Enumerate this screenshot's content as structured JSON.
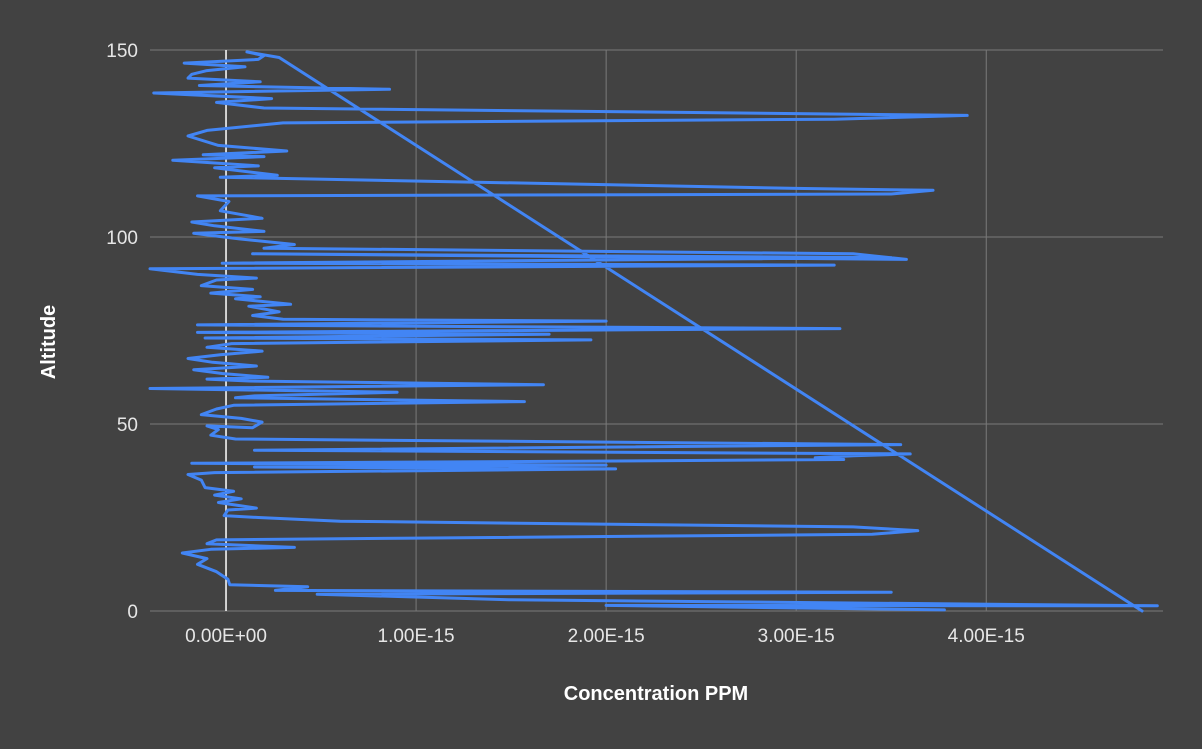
{
  "colors": {
    "background": "#424242",
    "grid": "#7a7a7a",
    "zero_line": "#ffffff",
    "series": "#4285f4",
    "text": "#e6e6e6"
  },
  "chart_data": {
    "type": "line",
    "title": "",
    "xlabel": "Concentration PPM",
    "ylabel": "Altitude",
    "xlim": [
      -4e-16,
      4.93e-15
    ],
    "ylim": [
      0,
      150
    ],
    "grid": true,
    "legend": "none",
    "x_ticks": [
      {
        "value": 0,
        "label": "0.00E+00"
      },
      {
        "value": 1e-15,
        "label": "1.00E-15"
      },
      {
        "value": 2e-15,
        "label": "2.00E-15"
      },
      {
        "value": 3e-15,
        "label": "3.00E-15"
      },
      {
        "value": 4e-15,
        "label": "4.00E-15"
      }
    ],
    "y_ticks": [
      {
        "value": 0,
        "label": "0"
      },
      {
        "value": 50,
        "label": "50"
      },
      {
        "value": 100,
        "label": "100"
      },
      {
        "value": 150,
        "label": "150"
      }
    ],
    "series": [
      {
        "points": [
          [
            3.78e-15,
            0.3
          ],
          [
            2e-15,
            1.5
          ],
          [
            4.9e-15,
            1.4
          ],
          [
            1.5e-15,
            3.0
          ],
          [
            4.8e-16,
            4.5
          ],
          [
            3.5e-15,
            5.0
          ],
          [
            2.6e-16,
            5.5
          ],
          [
            4.3e-16,
            6.5
          ],
          [
            2e-17,
            7.0
          ],
          [
            1e-17,
            8.5
          ],
          [
            -5e-17,
            10.5
          ],
          [
            -1.5e-16,
            12.5
          ],
          [
            -1e-16,
            14.0
          ],
          [
            -2.3e-16,
            15.5
          ],
          [
            -8e-17,
            16.5
          ],
          [
            3.6e-16,
            17.0
          ],
          [
            -1e-16,
            18.0
          ],
          [
            -5e-17,
            19.0
          ],
          [
            1e-15,
            19.5
          ],
          [
            3.4e-15,
            20.5
          ],
          [
            3.64e-15,
            21.5
          ],
          [
            3.3e-15,
            22.5
          ],
          [
            6e-16,
            24.0
          ],
          [
            1.7e-16,
            25.0
          ],
          [
            -1e-17,
            25.5
          ],
          [
            1e-17,
            27.0
          ],
          [
            1.6e-16,
            27.5
          ],
          [
            -4e-17,
            29.0
          ],
          [
            8e-17,
            30.0
          ],
          [
            -6e-17,
            31.0
          ],
          [
            4e-17,
            32.0
          ],
          [
            -1.1e-16,
            33.0
          ],
          [
            -1.3e-16,
            35.0
          ],
          [
            -2e-16,
            36.5
          ],
          [
            -6e-17,
            37.0
          ],
          [
            2.05e-15,
            38.0
          ],
          [
            1.5e-16,
            38.5
          ],
          [
            2e-15,
            39.0
          ],
          [
            -1.8e-16,
            39.5
          ],
          [
            1.7e-15,
            40.0
          ],
          [
            3.25e-15,
            40.5
          ],
          [
            3.1e-15,
            41.0
          ],
          [
            3.3e-15,
            41.5
          ],
          [
            3.6e-15,
            42.0
          ],
          [
            1.5e-16,
            43.0
          ],
          [
            3.55e-15,
            44.5
          ],
          [
            5e-17,
            46.0
          ],
          [
            -8e-17,
            47.0
          ],
          [
            -4e-17,
            48.5
          ],
          [
            -1e-16,
            49.5
          ],
          [
            1.4e-16,
            49.0
          ],
          [
            1.9e-16,
            50.5
          ],
          [
            8e-17,
            51.5
          ],
          [
            -1.3e-16,
            52.5
          ],
          [
            -5e-17,
            54.0
          ],
          [
            4e-17,
            55.0
          ],
          [
            1.57e-15,
            56.0
          ],
          [
            5e-17,
            57.0
          ],
          [
            1.5e-16,
            57.5
          ],
          [
            9e-16,
            58.5
          ],
          [
            -4e-16,
            59.5
          ],
          [
            1.67e-15,
            60.5
          ],
          [
            1.2e-16,
            61.5
          ],
          [
            -1e-16,
            62.0
          ],
          [
            2.2e-16,
            62.5
          ],
          [
            -2e-17,
            63.5
          ],
          [
            -1.7e-16,
            64.5
          ],
          [
            1.6e-16,
            65.5
          ],
          [
            -7e-17,
            66.5
          ],
          [
            -2e-16,
            67.5
          ],
          [
            -3e-17,
            68.5
          ],
          [
            1.9e-16,
            69.5
          ],
          [
            -1e-16,
            70.5
          ],
          [
            3e-17,
            71.5
          ],
          [
            1.92e-15,
            72.5
          ],
          [
            -1.1e-16,
            73.0
          ],
          [
            1.7e-15,
            74.0
          ],
          [
            -1.5e-16,
            74.5
          ],
          [
            3.23e-15,
            75.5
          ],
          [
            -1.5e-16,
            76.5
          ],
          [
            2e-15,
            77.5
          ],
          [
            3e-16,
            78.0
          ],
          [
            1.4e-16,
            79.0
          ],
          [
            2.8e-16,
            80.0
          ],
          [
            1.2e-16,
            81.5
          ],
          [
            3.4e-16,
            82.0
          ],
          [
            5e-17,
            83.5
          ],
          [
            1.8e-16,
            84.0
          ],
          [
            -8e-17,
            85.0
          ],
          [
            1.4e-16,
            86.0
          ],
          [
            -1.3e-16,
            87.0
          ],
          [
            -5e-17,
            88.5
          ],
          [
            1.6e-16,
            89.0
          ],
          [
            -1.5e-16,
            90.0
          ],
          [
            -4e-16,
            91.5
          ],
          [
            3.2e-15,
            92.5
          ],
          [
            -2e-17,
            93.0
          ],
          [
            3.5e-15,
            94.5
          ],
          [
            1.4e-16,
            95.5
          ],
          [
            3.58e-15,
            94.0
          ],
          [
            3.3e-15,
            95.5
          ],
          [
            2e-16,
            97.0
          ],
          [
            3.6e-16,
            98.0
          ],
          [
            7e-17,
            99.5
          ],
          [
            -1.7e-16,
            101.0
          ],
          [
            2e-16,
            101.5
          ],
          [
            -6e-17,
            103.0
          ],
          [
            -1.8e-16,
            104.0
          ],
          [
            1.9e-16,
            105.0
          ],
          [
            -3e-17,
            107.0
          ],
          [
            1.5e-17,
            109.5
          ],
          [
            -1.5e-16,
            111.0
          ],
          [
            3.5e-15,
            111.5
          ],
          [
            3.72e-15,
            112.5
          ],
          [
            3e-15,
            113.0
          ],
          [
            -3e-17,
            116.0
          ],
          [
            2.7e-16,
            116.5
          ],
          [
            -6e-17,
            118.5
          ],
          [
            1.7e-16,
            119.0
          ],
          [
            -2.8e-16,
            120.5
          ],
          [
            2e-16,
            121.5
          ],
          [
            -1.2e-16,
            122.0
          ],
          [
            3.2e-16,
            123.0
          ],
          [
            -4e-17,
            124.5
          ],
          [
            -2e-16,
            127.0
          ],
          [
            -1e-16,
            128.5
          ],
          [
            3e-16,
            130.5
          ],
          [
            3.2e-15,
            131.5
          ],
          [
            3.9e-15,
            132.5
          ],
          [
            3e-15,
            133.0
          ],
          [
            2e-16,
            134.5
          ],
          [
            -5e-17,
            136.0
          ],
          [
            2.4e-16,
            137.0
          ],
          [
            -3.8e-16,
            138.5
          ],
          [
            8.6e-16,
            139.5
          ],
          [
            -1.4e-16,
            140.5
          ],
          [
            1.8e-16,
            141.5
          ],
          [
            -2e-16,
            142.5
          ],
          [
            -1.8e-16,
            143.5
          ],
          [
            -1e-16,
            144.5
          ],
          [
            1e-16,
            145.5
          ],
          [
            -2.2e-16,
            146.5
          ],
          [
            1.7e-16,
            147.5
          ],
          [
            2e-16,
            148.5
          ],
          [
            1.1e-16,
            149.5
          ],
          [
            2.8e-16,
            148.0
          ],
          [
            4.82e-15,
            0.0
          ]
        ]
      }
    ]
  }
}
